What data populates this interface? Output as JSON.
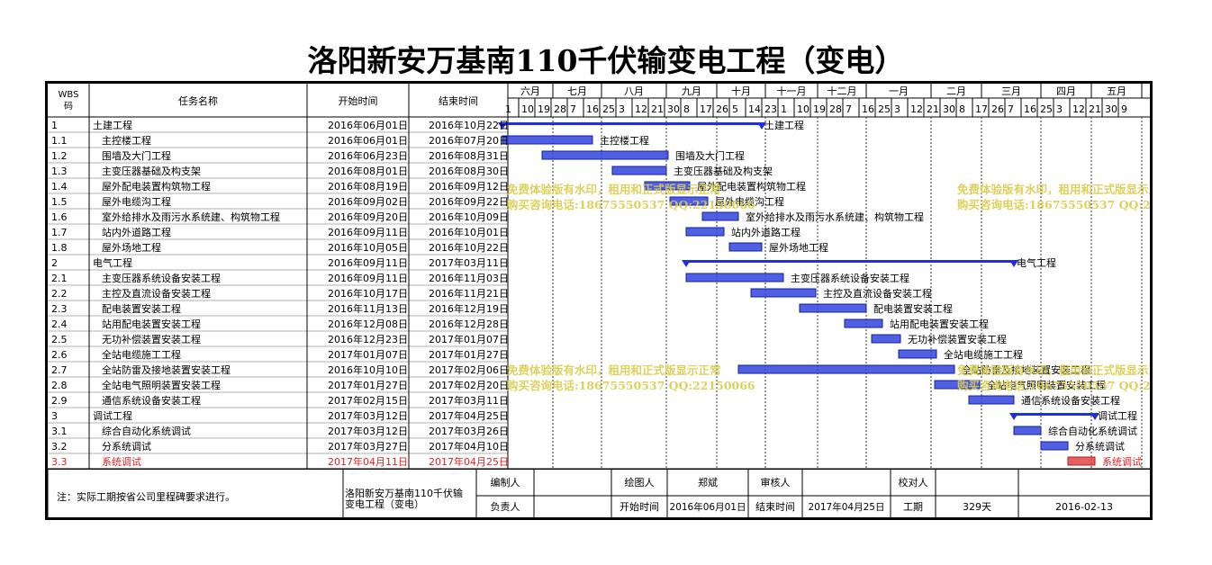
{
  "title": "洛阳新安万基南110千伏输变电工程（变电）",
  "headers": {
    "wbs": "WBS码",
    "wbs_line1": "WBS",
    "wbs_line2": "码",
    "name": "任务名称",
    "start": "开始时间",
    "end": "结束时间"
  },
  "months": [
    "六月",
    "七月",
    "八月",
    "九月",
    "十月",
    "十一月",
    "十二月",
    "一月",
    "二月",
    "三月",
    "四月",
    "五月"
  ],
  "week_days": [
    "1",
    "10",
    "19",
    "28",
    "7",
    "16",
    "25",
    "3",
    "12",
    "21",
    "30",
    "8",
    "17",
    "26",
    "5",
    "14",
    "23",
    "1",
    "10",
    "19",
    "28",
    "7",
    "16",
    "25",
    "3",
    "12",
    "21",
    "30",
    "8",
    "17",
    "26",
    "7",
    "16",
    "25",
    "3",
    "12",
    "21",
    "30",
    "9"
  ],
  "tasks": [
    {
      "wbs": "1",
      "name": "土建工程",
      "start": "2016年06月01日",
      "end": "2016年10月22日",
      "summary": true,
      "red": false
    },
    {
      "wbs": "1.1",
      "name": "主控楼工程",
      "start": "2016年06月01日",
      "end": "2016年07月20日",
      "summary": false,
      "red": false
    },
    {
      "wbs": "1.2",
      "name": "围墙及大门工程",
      "start": "2016年06月23日",
      "end": "2016年08月31日",
      "summary": false,
      "red": false
    },
    {
      "wbs": "1.3",
      "name": "主变压器基础及构支架",
      "start": "2016年08月01日",
      "end": "2016年08月30日",
      "summary": false,
      "red": false
    },
    {
      "wbs": "1.4",
      "name": "屋外配电装置构筑物工程",
      "start": "2016年08月19日",
      "end": "2016年09月12日",
      "summary": false,
      "red": false
    },
    {
      "wbs": "1.5",
      "name": "屋外电缆沟工程",
      "start": "2016年09月02日",
      "end": "2016年09月22日",
      "summary": false,
      "red": false
    },
    {
      "wbs": "1.6",
      "name": "室外给排水及雨污水系统建、构筑物工程",
      "start": "2016年09月20日",
      "end": "2016年10月09日",
      "summary": false,
      "red": false
    },
    {
      "wbs": "1.7",
      "name": "站内外道路工程",
      "start": "2016年09月11日",
      "end": "2016年10月01日",
      "summary": false,
      "red": false
    },
    {
      "wbs": "1.8",
      "name": "屋外场地工程",
      "start": "2016年10月05日",
      "end": "2016年10月22日",
      "summary": false,
      "red": false
    },
    {
      "wbs": "2",
      "name": "电气工程",
      "start": "2016年09月11日",
      "end": "2017年03月11日",
      "summary": true,
      "red": false
    },
    {
      "wbs": "2.1",
      "name": "主变压器系统设备安装工程",
      "start": "2016年09月11日",
      "end": "2016年11月03日",
      "summary": false,
      "red": false
    },
    {
      "wbs": "2.2",
      "name": "主控及直流设备安装工程",
      "start": "2016年10月17日",
      "end": "2016年11月21日",
      "summary": false,
      "red": false
    },
    {
      "wbs": "2.3",
      "name": "配电装置安装工程",
      "start": "2016年11月13日",
      "end": "2016年12月19日",
      "summary": false,
      "red": false
    },
    {
      "wbs": "2.4",
      "name": "站用配电装置安装工程",
      "start": "2016年12月08日",
      "end": "2016年12月28日",
      "summary": false,
      "red": false
    },
    {
      "wbs": "2.5",
      "name": "无功补偿装置安装工程",
      "start": "2016年12月23日",
      "end": "2017年01月07日",
      "summary": false,
      "red": false
    },
    {
      "wbs": "2.6",
      "name": "全站电缆施工工程",
      "start": "2017年01月07日",
      "end": "2017年01月27日",
      "summary": false,
      "red": false
    },
    {
      "wbs": "2.7",
      "name": "全站防雷及接地装置安装工程",
      "start": "2016年10月10日",
      "end": "2017年02月06日",
      "summary": false,
      "red": false
    },
    {
      "wbs": "2.8",
      "name": "全站电气照明装置安装工程",
      "start": "2017年01月27日",
      "end": "2017年02月20日",
      "summary": false,
      "red": false
    },
    {
      "wbs": "2.9",
      "name": "通信系统设备安装工程",
      "start": "2017年02月15日",
      "end": "2017年03月11日",
      "summary": false,
      "red": false
    },
    {
      "wbs": "3",
      "name": "调试工程",
      "start": "2017年03月12日",
      "end": "2017年04月25日",
      "summary": true,
      "red": false
    },
    {
      "wbs": "3.1",
      "name": "综合自动化系统调试",
      "start": "2017年03月12日",
      "end": "2017年03月26日",
      "summary": false,
      "red": false
    },
    {
      "wbs": "3.2",
      "name": "分系统调试",
      "start": "2017年03月27日",
      "end": "2017年04月10日",
      "summary": false,
      "red": false
    },
    {
      "wbs": "3.3",
      "name": "系统调试",
      "start": "2017年04月11日",
      "end": "2017年04月25日",
      "summary": false,
      "red": true
    }
  ],
  "gantt_labels": {
    "1": "土建工程",
    "2": "电气工程",
    "3": "调试工程"
  },
  "watermark": {
    "line1": "免费体验版有水印，租用和正式版显示正常",
    "line2": "购买咨询电话:18675550537 QQ:22150066"
  },
  "footer": {
    "note": "注：实际工期按省公司里程碑要求进行。",
    "project_line1": "洛阳新安万基南110千伏输",
    "project_line2": "变电工程（变电）",
    "compiled_label": "编制人",
    "drafter_label": "绘图人",
    "drafter_value": "郑斌",
    "reviewer_label": "审核人",
    "checker_label": "校对人",
    "owner_label": "负责人",
    "start_label": "开始时间",
    "start_value": "2016年06月01日",
    "end_label": "结束时间",
    "end_value": "2017年04月25日",
    "duration_label": "工期",
    "duration_value": "329天",
    "date_value": "2016-02-13"
  },
  "colors": {
    "bar_fill": "#3344dd",
    "summary": "#1f2fe0",
    "red_bar": "#e04545",
    "red_text": "#e02020",
    "watermark": "#d9cc4d"
  }
}
